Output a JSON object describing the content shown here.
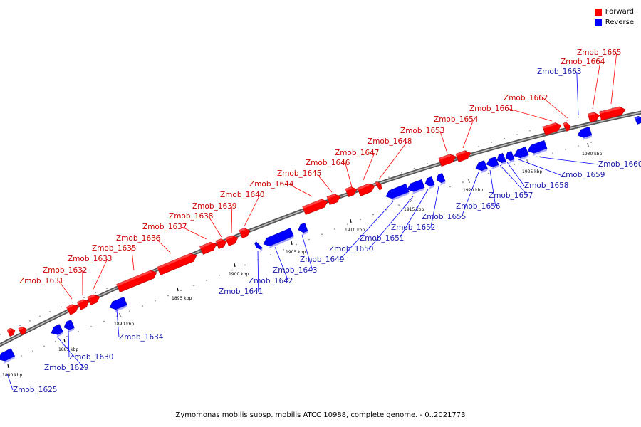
{
  "legend": {
    "forward_label": "Forward",
    "reverse_label": "Reverse",
    "forward_color": "#ff0000",
    "reverse_color": "#0000ff"
  },
  "caption": "Zymomonas mobilis subsp. mobilis ATCC 10988, complete genome. - 0..2021773",
  "scale_labels": [
    "1880 kbp",
    "1885 kbp",
    "1890 kbp",
    "1895 kbp",
    "1900 kbp",
    "1905 kbp",
    "1910 kbp",
    "1915 kbp",
    "1920 kbp",
    "1925 kbp",
    "1930 kbp"
  ],
  "genes": [
    {
      "name": "Zmob_1625",
      "strand": "reverse"
    },
    {
      "name": "Zmob_1629",
      "strand": "reverse"
    },
    {
      "name": "Zmob_1630",
      "strand": "reverse"
    },
    {
      "name": "Zmob_1631",
      "strand": "forward"
    },
    {
      "name": "Zmob_1632",
      "strand": "forward"
    },
    {
      "name": "Zmob_1633",
      "strand": "forward"
    },
    {
      "name": "Zmob_1634",
      "strand": "reverse"
    },
    {
      "name": "Zmob_1635",
      "strand": "forward"
    },
    {
      "name": "Zmob_1636",
      "strand": "forward"
    },
    {
      "name": "Zmob_1637",
      "strand": "forward"
    },
    {
      "name": "Zmob_1638",
      "strand": "forward"
    },
    {
      "name": "Zmob_1639",
      "strand": "forward"
    },
    {
      "name": "Zmob_1640",
      "strand": "forward"
    },
    {
      "name": "Zmob_1641",
      "strand": "reverse"
    },
    {
      "name": "Zmob_1642",
      "strand": "reverse"
    },
    {
      "name": "Zmob_1643",
      "strand": "reverse"
    },
    {
      "name": "Zmob_1644",
      "strand": "forward"
    },
    {
      "name": "Zmob_1645",
      "strand": "forward"
    },
    {
      "name": "Zmob_1646",
      "strand": "forward"
    },
    {
      "name": "Zmob_1647",
      "strand": "forward"
    },
    {
      "name": "Zmob_1648",
      "strand": "forward"
    },
    {
      "name": "Zmob_1649",
      "strand": "reverse"
    },
    {
      "name": "Zmob_1650",
      "strand": "reverse"
    },
    {
      "name": "Zmob_1651",
      "strand": "reverse"
    },
    {
      "name": "Zmob_1652",
      "strand": "reverse"
    },
    {
      "name": "Zmob_1653",
      "strand": "forward"
    },
    {
      "name": "Zmob_1654",
      "strand": "forward"
    },
    {
      "name": "Zmob_1655",
      "strand": "reverse"
    },
    {
      "name": "Zmob_1656",
      "strand": "reverse"
    },
    {
      "name": "Zmob_1657",
      "strand": "reverse"
    },
    {
      "name": "Zmob_1658",
      "strand": "reverse"
    },
    {
      "name": "Zmob_1659",
      "strand": "reverse"
    },
    {
      "name": "Zmob_1660",
      "strand": "reverse"
    },
    {
      "name": "Zmob_1661",
      "strand": "forward"
    },
    {
      "name": "Zmob_1662",
      "strand": "forward"
    },
    {
      "name": "Zmob_1663",
      "strand": "reverse"
    },
    {
      "name": "Zmob_1664",
      "strand": "forward"
    },
    {
      "name": "Zmob_1665",
      "strand": "forward"
    }
  ]
}
